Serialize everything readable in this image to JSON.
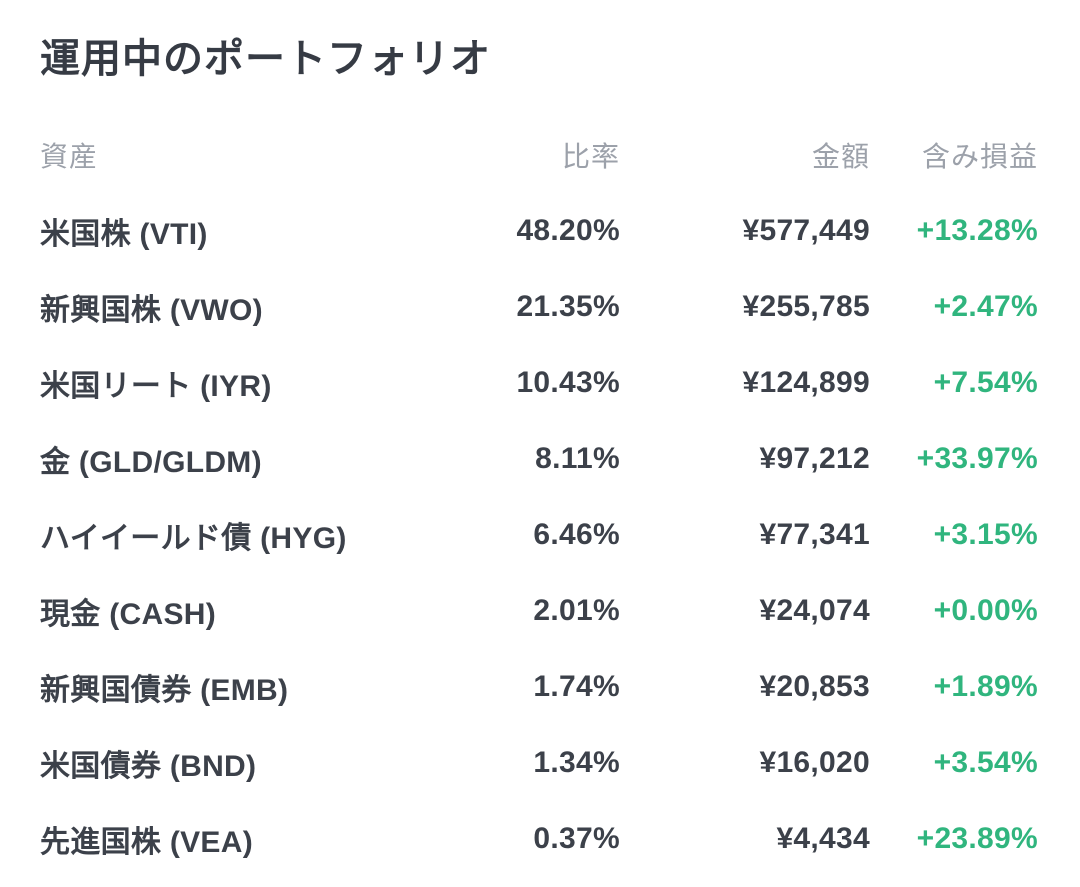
{
  "page": {
    "title": "運用中のポートフォリオ"
  },
  "colors": {
    "background": "#ffffff",
    "title_text": "#363b44",
    "row_text": "#3c414a",
    "header_text": "#9ca1aa",
    "positive_green": "#30b57e"
  },
  "table": {
    "headers": {
      "asset": "資産",
      "ratio": "比率",
      "amount": "金額",
      "pl": "含み損益"
    },
    "rows": [
      {
        "asset": "米国株 (VTI)",
        "ratio": "48.20%",
        "amount": "¥577,449",
        "pl": "+13.28%"
      },
      {
        "asset": "新興国株 (VWO)",
        "ratio": "21.35%",
        "amount": "¥255,785",
        "pl": "+2.47%"
      },
      {
        "asset": "米国リート (IYR)",
        "ratio": "10.43%",
        "amount": "¥124,899",
        "pl": "+7.54%"
      },
      {
        "asset": "金 (GLD/GLDM)",
        "ratio": "8.11%",
        "amount": "¥97,212",
        "pl": "+33.97%"
      },
      {
        "asset": "ハイイールド債 (HYG)",
        "ratio": "6.46%",
        "amount": "¥77,341",
        "pl": "+3.15%"
      },
      {
        "asset": "現金 (CASH)",
        "ratio": "2.01%",
        "amount": "¥24,074",
        "pl": "+0.00%"
      },
      {
        "asset": "新興国債券 (EMB)",
        "ratio": "1.74%",
        "amount": "¥20,853",
        "pl": "+1.89%"
      },
      {
        "asset": "米国債券 (BND)",
        "ratio": "1.34%",
        "amount": "¥16,020",
        "pl": "+3.54%"
      },
      {
        "asset": "先進国株 (VEA)",
        "ratio": "0.37%",
        "amount": "¥4,434",
        "pl": "+23.89%"
      }
    ]
  }
}
